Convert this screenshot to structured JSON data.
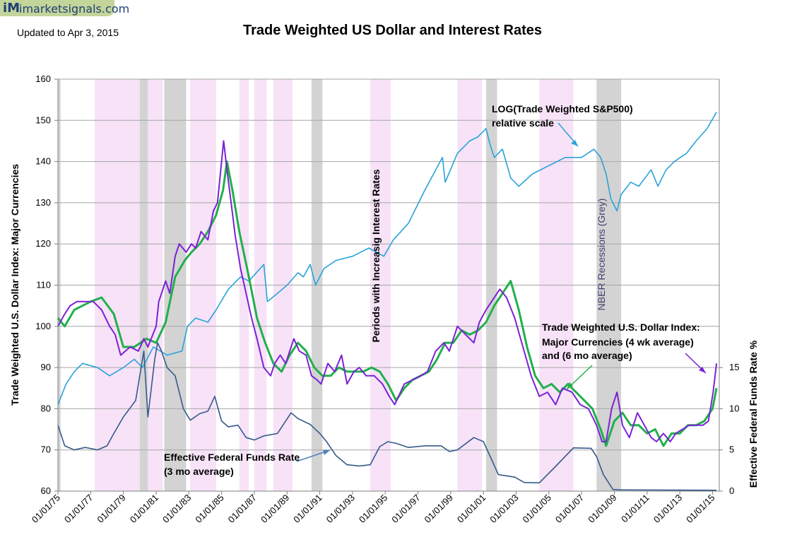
{
  "logo": {
    "mark": "iM",
    "text": "imarketsignals.com"
  },
  "updated": "Updated to Apr 3, 2015",
  "title": "Trade Weighted US Dollar  and Interest Rates",
  "chart_data": {
    "type": "line",
    "title": "Trade Weighted US Dollar  and Interest Rates",
    "ylabel": "Trade Weighted U.S. Dollar Index:  Major Currencies",
    "ylabel_right": "Effective Federal Funds Rate %",
    "ylim": [
      60,
      160
    ],
    "y_ticks": [
      60,
      70,
      80,
      90,
      100,
      110,
      120,
      130,
      140,
      150,
      160
    ],
    "ylim_right": [
      0,
      50
    ],
    "y2_ticks": [
      0,
      5,
      10,
      15
    ],
    "xlim": [
      "1975-01-01",
      "2015-06-01"
    ],
    "x_ticks": [
      "01/01/75",
      "01/01/77",
      "01/01/79",
      "01/01/81",
      "01/01/83",
      "01/01/85",
      "01/01/87",
      "01/01/89",
      "01/01/91",
      "01/01/93",
      "01/01/95",
      "01/01/97",
      "01/01/99",
      "01/01/01",
      "01/01/03",
      "01/01/05",
      "01/01/07",
      "01/01/09",
      "01/01/11",
      "01/01/13",
      "01/01/15"
    ],
    "grid": true,
    "recessions_nber": [
      [
        "1975-01-01",
        "1975-03-01"
      ],
      [
        "1980-01-01",
        "1980-07-01"
      ],
      [
        "1981-07-01",
        "1982-11-01"
      ],
      [
        "1990-07-01",
        "1991-03-01"
      ],
      [
        "2001-03-01",
        "2001-11-01"
      ],
      [
        "2007-12-01",
        "2009-06-01"
      ]
    ],
    "rising_rate_periods": [
      [
        "1977-04-01",
        "1980-01-01"
      ],
      [
        "1980-07-01",
        "1981-06-01"
      ],
      [
        "1983-02-01",
        "1984-09-01"
      ],
      [
        "1986-02-01",
        "1986-09-01"
      ],
      [
        "1987-01-01",
        "1987-10-01"
      ],
      [
        "1988-03-01",
        "1989-05-01"
      ],
      [
        "1994-02-01",
        "1995-05-01"
      ],
      [
        "1999-06-01",
        "2000-12-01"
      ],
      [
        "2004-06-01",
        "2006-07-01"
      ]
    ],
    "series": [
      {
        "name": "Trade Weighted U.S. Dollar Index: Major Currencies (4 wk average)",
        "color": "#7b22d6",
        "axis": "left",
        "x": [
          "1975-01-01",
          "1975-06-01",
          "1975-10-01",
          "1976-03-01",
          "1976-09-01",
          "1977-03-01",
          "1977-09-01",
          "1978-03-01",
          "1978-07-01",
          "1978-11-01",
          "1979-06-01",
          "1979-12-01",
          "1980-04-01",
          "1980-07-01",
          "1981-01-01",
          "1981-03-01",
          "1981-08-01",
          "1981-11-01",
          "1982-03-01",
          "1982-06-01",
          "1982-11-01",
          "1983-03-01",
          "1983-06-01",
          "1983-10-01",
          "1984-03-01",
          "1984-07-01",
          "1984-10-01",
          "1985-02-15",
          "1985-05-01",
          "1985-08-01",
          "1985-11-01",
          "1986-03-01",
          "1986-07-01",
          "1986-11-01",
          "1987-03-01",
          "1987-08-01",
          "1987-12-31",
          "1988-04-01",
          "1988-08-01",
          "1988-12-01",
          "1989-06-01",
          "1989-10-01",
          "1990-03-01",
          "1990-07-01",
          "1990-11-01",
          "1991-02-01",
          "1991-07-01",
          "1991-12-01",
          "1992-05-01",
          "1992-09-01",
          "1993-02-01",
          "1993-06-01",
          "1993-11-01",
          "1994-05-01",
          "1994-11-01",
          "1995-04-01",
          "1995-08-01",
          "1996-03-01",
          "1996-09-01",
          "1997-03-01",
          "1997-08-01",
          "1998-02-01",
          "1998-08-01",
          "1998-12-01",
          "1999-06-01",
          "1999-12-01",
          "2000-06-01",
          "2000-10-01",
          "2001-03-01",
          "2001-07-01",
          "2002-01-01",
          "2002-06-01",
          "2002-12-01",
          "2003-06-01",
          "2003-12-01",
          "2004-06-01",
          "2004-12-01",
          "2005-06-01",
          "2005-11-01",
          "2006-06-01",
          "2006-12-01",
          "2007-06-01",
          "2007-12-01",
          "2008-04-01",
          "2008-07-01",
          "2008-11-01",
          "2009-03-01",
          "2009-07-01",
          "2009-12-01",
          "2010-06-01",
          "2010-11-01",
          "2011-04-01",
          "2011-08-01",
          "2012-01-01",
          "2012-06-01",
          "2012-10-01",
          "2013-03-01",
          "2013-08-01",
          "2014-01-01",
          "2014-06-01",
          "2014-10-01",
          "2015-01-15",
          "2015-04-01"
        ],
        "y": [
          100,
          103,
          105,
          106,
          106,
          106,
          104,
          100,
          98,
          93,
          95,
          94,
          97,
          95,
          100,
          106,
          111,
          108,
          117,
          120,
          118,
          120,
          119,
          123,
          121,
          128,
          130,
          145,
          138,
          130,
          122,
          114,
          108,
          102,
          97,
          90,
          88,
          91,
          93,
          91,
          97,
          94,
          93,
          88,
          87,
          86,
          91,
          89,
          93,
          86,
          89,
          90,
          88,
          88,
          86,
          83,
          81,
          86,
          87,
          88,
          89,
          94,
          96,
          94,
          100,
          98,
          96,
          101,
          104,
          106,
          109,
          107,
          102,
          95,
          88,
          83,
          84,
          81,
          85,
          84,
          81,
          80,
          76,
          72,
          72,
          80,
          84,
          76,
          73,
          79,
          76,
          73,
          72,
          74,
          72,
          74,
          75,
          76,
          76,
          76,
          77,
          84,
          91
        ]
      },
      {
        "name": "Trade Weighted U.S. Dollar Index: Major Currencies (6 mo average)",
        "color": "#21b04b",
        "axis": "left",
        "x": [
          "1975-01-01",
          "1975-06-01",
          "1976-01-01",
          "1977-01-01",
          "1977-09-01",
          "1978-06-01",
          "1979-01-01",
          "1979-09-01",
          "1980-06-01",
          "1981-01-01",
          "1981-08-01",
          "1982-03-01",
          "1982-10-01",
          "1983-03-01",
          "1983-09-01",
          "1984-03-01",
          "1984-09-01",
          "1985-02-01",
          "1985-05-01",
          "1985-09-01",
          "1986-02-01",
          "1986-09-01",
          "1987-03-01",
          "1987-09-01",
          "1988-03-01",
          "1988-09-01",
          "1989-03-01",
          "1989-09-01",
          "1990-03-01",
          "1990-09-01",
          "1991-03-01",
          "1991-09-01",
          "1992-03-01",
          "1992-09-01",
          "1993-03-01",
          "1993-09-01",
          "1994-03-01",
          "1994-09-01",
          "1995-03-01",
          "1995-09-01",
          "1996-03-01",
          "1996-09-01",
          "1997-03-01",
          "1997-09-01",
          "1998-03-01",
          "1998-09-01",
          "1999-03-01",
          "1999-09-01",
          "2000-03-01",
          "2000-09-01",
          "2001-03-01",
          "2001-09-01",
          "2002-03-01",
          "2002-09-01",
          "2003-03-01",
          "2003-09-01",
          "2004-03-01",
          "2004-09-01",
          "2005-03-01",
          "2005-09-01",
          "2006-03-01",
          "2006-09-01",
          "2007-03-01",
          "2007-09-01",
          "2008-03-01",
          "2008-07-01",
          "2009-01-01",
          "2009-07-01",
          "2010-01-01",
          "2010-07-01",
          "2011-01-01",
          "2011-07-01",
          "2012-01-01",
          "2012-07-01",
          "2013-01-01",
          "2013-07-01",
          "2014-01-01",
          "2014-07-01",
          "2015-01-01",
          "2015-04-01"
        ],
        "y": [
          102,
          100,
          104,
          106,
          107,
          103,
          95,
          95,
          97,
          96,
          101,
          112,
          116,
          118,
          120,
          123,
          127,
          133,
          140,
          133,
          123,
          112,
          102,
          96,
          91,
          89,
          93,
          96,
          94,
          90,
          88,
          88,
          90,
          89,
          89,
          89,
          90,
          89,
          86,
          82,
          85,
          87,
          88,
          89,
          92,
          96,
          96,
          99,
          98,
          99,
          101,
          105,
          108,
          111,
          104,
          95,
          88,
          85,
          86,
          84,
          86,
          84,
          82,
          80,
          75,
          71,
          77,
          79,
          76,
          76,
          74,
          75,
          71,
          74,
          74,
          76,
          76,
          77,
          80,
          85
        ]
      },
      {
        "name": "LOG(Trade Weighted S&P500) relative scale",
        "color": "#29a3d9",
        "axis": "left",
        "x": [
          "1975-01-01",
          "1975-07-01",
          "1976-01-01",
          "1976-07-01",
          "1977-06-01",
          "1978-03-01",
          "1979-01-01",
          "1979-09-01",
          "1980-03-01",
          "1980-11-01",
          "1981-09-01",
          "1982-08-01",
          "1982-12-01",
          "1983-06-01",
          "1984-03-01",
          "1984-09-01",
          "1985-06-01",
          "1986-03-01",
          "1986-09-01",
          "1987-08-01",
          "1987-10-20",
          "1988-06-01",
          "1989-01-01",
          "1989-09-01",
          "1990-01-01",
          "1990-06-01",
          "1990-10-01",
          "1991-04-01",
          "1992-01-01",
          "1993-01-01",
          "1994-01-01",
          "1994-12-01",
          "1995-07-01",
          "1996-06-01",
          "1997-06-01",
          "1998-07-01",
          "1998-09-01",
          "1999-06-01",
          "2000-03-01",
          "2000-09-01",
          "2001-03-01",
          "2001-06-01",
          "2001-09-01",
          "2002-03-01",
          "2002-09-01",
          "2003-03-01",
          "2004-01-01",
          "2005-01-01",
          "2006-01-01",
          "2007-01-01",
          "2007-10-01",
          "2008-03-01",
          "2008-07-01",
          "2008-10-15",
          "2009-03-01",
          "2009-06-01",
          "2010-01-01",
          "2010-07-01",
          "2011-04-01",
          "2011-09-01",
          "2012-03-01",
          "2012-09-01",
          "2013-06-01",
          "2014-01-01",
          "2014-09-01",
          "2015-04-01"
        ],
        "y": [
          81,
          86,
          89,
          91,
          90,
          88,
          90,
          92,
          90,
          95,
          93,
          94,
          100,
          102,
          101,
          104,
          109,
          112,
          111,
          115,
          106,
          108,
          110,
          113,
          112,
          115,
          110,
          114,
          116,
          117,
          119,
          117,
          121,
          125,
          133,
          141,
          135,
          142,
          145,
          146,
          148,
          144,
          141,
          143,
          136,
          134,
          137,
          139,
          141,
          141,
          143,
          141,
          137,
          131,
          128,
          132,
          135,
          134,
          138,
          134,
          138,
          140,
          142,
          145,
          148,
          152
        ]
      },
      {
        "name": "Effective Federal Funds Rate (3 mo average)",
        "color": "#355a8a",
        "axis": "right",
        "x": [
          "1975-01-01",
          "1975-06-01",
          "1976-01-01",
          "1976-09-01",
          "1977-06-01",
          "1978-01-01",
          "1978-06-01",
          "1979-01-01",
          "1979-10-01",
          "1980-04-01",
          "1980-07-01",
          "1980-12-01",
          "1981-02-01",
          "1981-05-01",
          "1981-09-01",
          "1982-03-01",
          "1982-09-01",
          "1983-02-01",
          "1983-09-01",
          "1984-03-01",
          "1984-08-01",
          "1985-01-01",
          "1985-06-01",
          "1986-01-01",
          "1986-07-01",
          "1987-01-01",
          "1987-08-01",
          "1988-06-01",
          "1989-04-01",
          "1989-09-01",
          "1990-06-01",
          "1991-01-01",
          "1991-06-01",
          "1992-01-01",
          "1992-09-01",
          "1993-06-01",
          "1994-02-01",
          "1994-09-01",
          "1995-03-01",
          "1995-09-01",
          "1996-06-01",
          "1997-06-01",
          "1998-06-01",
          "1998-12-01",
          "1999-06-01",
          "2000-06-01",
          "2001-01-01",
          "2001-06-01",
          "2001-12-01",
          "2002-12-01",
          "2003-07-01",
          "2004-06-01",
          "2005-06-01",
          "2006-07-01",
          "2007-08-01",
          "2007-12-01",
          "2008-05-01",
          "2008-12-01",
          "2009-06-01",
          "2015-04-01"
        ],
        "y": [
          8,
          5.5,
          5,
          5.3,
          5,
          5.5,
          7,
          9,
          11,
          17,
          9,
          16,
          18,
          17,
          15,
          14,
          10,
          8.6,
          9.4,
          9.7,
          11.5,
          8.5,
          7.8,
          8,
          6.5,
          6.2,
          6.7,
          7,
          9.5,
          8.8,
          8.1,
          7,
          6,
          4.3,
          3.2,
          3.05,
          3.2,
          5.4,
          6,
          5.8,
          5.3,
          5.5,
          5.5,
          4.8,
          5,
          6.5,
          6,
          4.2,
          2,
          1.7,
          1.05,
          1,
          3,
          5.25,
          5.2,
          4.2,
          2,
          0.2,
          0.15,
          0.1
        ]
      }
    ],
    "annotations": [
      "LOG(Trade Weighted S&P500) relative scale",
      "Trade Weighted U.S. Dollar Index: Major Currencies (4 wk average) and (6 mo average)",
      "Effective Federal Funds Rate (3 mo average)",
      "Periods with Increasig Interest Rates",
      "NBER Recessions (Grey)"
    ]
  },
  "labels": {
    "left_axis": "Trade Weighted U.S. Dollar Index:  Major Currencies",
    "right_axis": "Effective Federal Funds Rate %",
    "sp500_line1": "LOG(Trade Weighted S&P500)",
    "sp500_line2": "relative scale",
    "dollar_line1": "Trade Weighted U.S. Dollar Index:",
    "dollar_line2": "Major Currencies (4 wk average)",
    "dollar_line3": "and (6 mo average)",
    "fed_line1": "Effective Federal Funds Rate",
    "fed_line2": "(3 mo average)",
    "rising_rates": "Periods with Increasig Interest Rates",
    "nber": "NBER Recessions (Grey)"
  },
  "colors": {
    "recession": "#d3d3d3",
    "rising_rates": "#f7e2f7",
    "grid": "#a6a6a6",
    "arrow_sp500": "#29a3d9",
    "arrow_dollar_green": "#21b04b",
    "arrow_dollar_purple": "#7b22d6",
    "arrow_fed": "#4f81bd",
    "nber_text": "#404070"
  }
}
